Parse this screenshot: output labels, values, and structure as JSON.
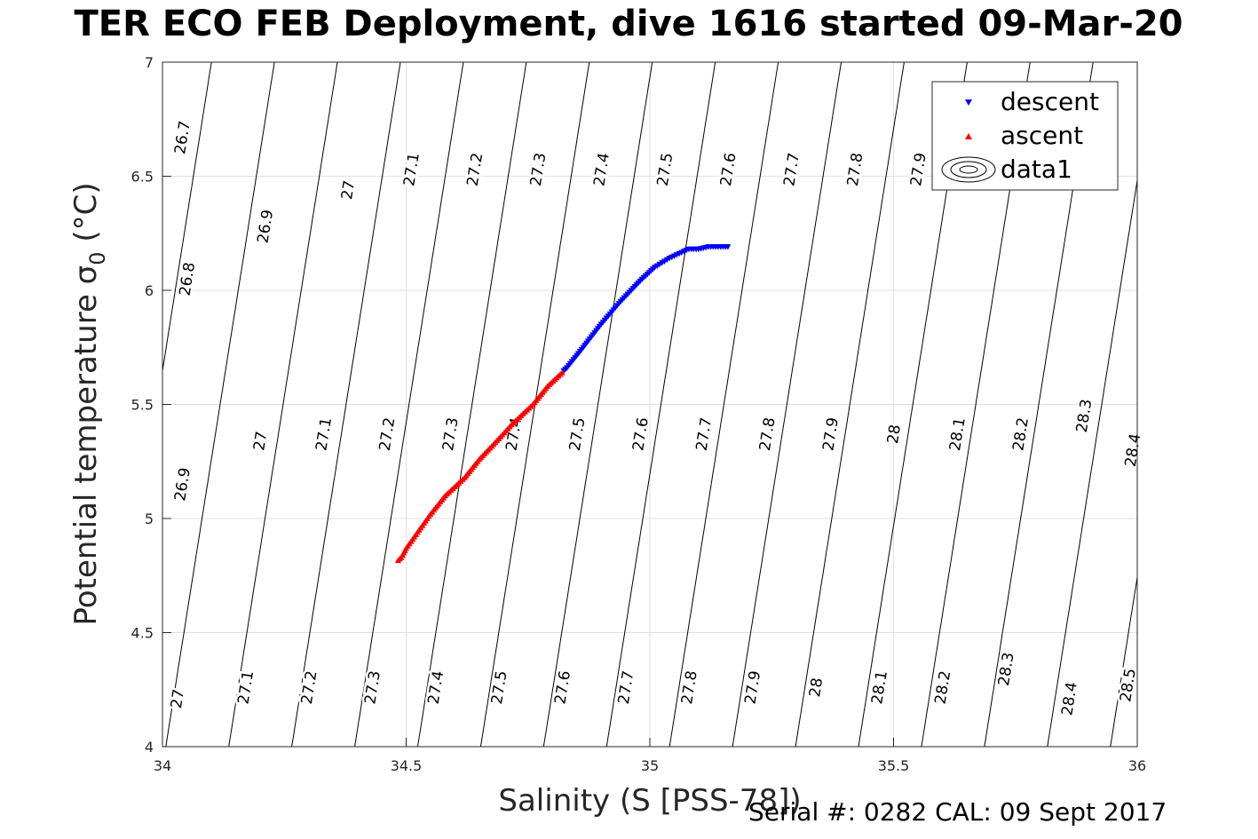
{
  "title": "TER ECO FEB Deployment, dive 1616 started 09-Mar-20",
  "footer": "Serial #: 0282  CAL: 09 Sept 2017",
  "chart_data": {
    "type": "scatter",
    "xlabel": "Salinity (S [PSS-78])",
    "ylabel_main": "Potential temperature ",
    "ylabel_sigma": "σ",
    "ylabel_sub": "0",
    "ylabel_unit": " (°C)",
    "xlim": [
      34,
      36
    ],
    "ylim": [
      4,
      7
    ],
    "xticks": [
      "34",
      "34.5",
      "35",
      "35.5",
      "36"
    ],
    "yticks": [
      "4",
      "4.5",
      "5",
      "5.5",
      "6",
      "6.5",
      "7"
    ],
    "grid": true,
    "legend_position": "top-right",
    "legend": [
      "descent",
      "ascent",
      "data1"
    ],
    "colors": {
      "descent": "#0000ff",
      "ascent": "#ff0000",
      "contour": "#000000",
      "grid": "#e0e0e0"
    },
    "series": [
      {
        "name": "descent",
        "marker": "triangle-down",
        "points": [
          [
            35.16,
            6.19
          ],
          [
            35.14,
            6.19
          ],
          [
            35.12,
            6.19
          ],
          [
            35.1,
            6.18
          ],
          [
            35.08,
            6.18
          ],
          [
            35.06,
            6.16
          ],
          [
            35.04,
            6.14
          ],
          [
            35.01,
            6.1
          ],
          [
            34.98,
            6.04
          ],
          [
            34.94,
            5.95
          ],
          [
            34.9,
            5.85
          ],
          [
            34.86,
            5.74
          ],
          [
            34.83,
            5.66
          ],
          [
            34.82,
            5.64
          ]
        ]
      },
      {
        "name": "ascent",
        "marker": "triangle-up",
        "points": [
          [
            34.82,
            5.64
          ],
          [
            34.79,
            5.58
          ],
          [
            34.76,
            5.5
          ],
          [
            34.72,
            5.42
          ],
          [
            34.69,
            5.35
          ],
          [
            34.65,
            5.26
          ],
          [
            34.62,
            5.18
          ],
          [
            34.58,
            5.1
          ],
          [
            34.55,
            5.02
          ],
          [
            34.52,
            4.93
          ],
          [
            34.5,
            4.87
          ],
          [
            34.49,
            4.83
          ],
          [
            34.48,
            4.81
          ]
        ]
      }
    ],
    "contour_levels": [
      "26.7",
      "26.8",
      "26.9",
      "27",
      "27.1",
      "27.2",
      "27.3",
      "27.4",
      "27.5",
      "27.6",
      "27.7",
      "27.8",
      "27.9",
      "28",
      "28.1",
      "28.2",
      "28.3",
      "28.4",
      "28.5"
    ],
    "contour_labels": [
      {
        "text": "26.7",
        "s": 34.04,
        "t": 6.67
      },
      {
        "text": "26.8",
        "s": 34.05,
        "t": 6.05
      },
      {
        "text": "26.9",
        "s": 34.21,
        "t": 6.28
      },
      {
        "text": "26.9",
        "s": 34.04,
        "t": 5.15
      },
      {
        "text": "27",
        "s": 34.38,
        "t": 6.44
      },
      {
        "text": "27",
        "s": 34.2,
        "t": 5.34
      },
      {
        "text": "27",
        "s": 34.03,
        "t": 4.21
      },
      {
        "text": "27.1",
        "s": 34.51,
        "t": 6.53
      },
      {
        "text": "27.1",
        "s": 34.33,
        "t": 5.37
      },
      {
        "text": "27.1",
        "s": 34.17,
        "t": 4.26
      },
      {
        "text": "27.2",
        "s": 34.64,
        "t": 6.53
      },
      {
        "text": "27.2",
        "s": 34.46,
        "t": 5.37
      },
      {
        "text": "27.2",
        "s": 34.3,
        "t": 4.26
      },
      {
        "text": "27.3",
        "s": 34.77,
        "t": 6.53
      },
      {
        "text": "27.3",
        "s": 34.59,
        "t": 5.37
      },
      {
        "text": "27.3",
        "s": 34.43,
        "t": 4.26
      },
      {
        "text": "27.4",
        "s": 34.9,
        "t": 6.53
      },
      {
        "text": "27.4",
        "s": 34.72,
        "t": 5.37
      },
      {
        "text": "27.4",
        "s": 34.56,
        "t": 4.26
      },
      {
        "text": "27.5",
        "s": 35.03,
        "t": 6.53
      },
      {
        "text": "27.5",
        "s": 34.85,
        "t": 5.37
      },
      {
        "text": "27.5",
        "s": 34.69,
        "t": 4.26
      },
      {
        "text": "27.6",
        "s": 35.16,
        "t": 6.53
      },
      {
        "text": "27.6",
        "s": 34.98,
        "t": 5.37
      },
      {
        "text": "27.6",
        "s": 34.82,
        "t": 4.26
      },
      {
        "text": "27.7",
        "s": 35.29,
        "t": 6.53
      },
      {
        "text": "27.7",
        "s": 35.11,
        "t": 5.37
      },
      {
        "text": "27.7",
        "s": 34.95,
        "t": 4.26
      },
      {
        "text": "27.8",
        "s": 35.42,
        "t": 6.53
      },
      {
        "text": "27.8",
        "s": 35.24,
        "t": 5.37
      },
      {
        "text": "27.8",
        "s": 35.08,
        "t": 4.26
      },
      {
        "text": "27.9",
        "s": 35.55,
        "t": 6.53
      },
      {
        "text": "27.9",
        "s": 35.37,
        "t": 5.37
      },
      {
        "text": "27.9",
        "s": 35.21,
        "t": 4.26
      },
      {
        "text": "28",
        "s": 35.5,
        "t": 5.37
      },
      {
        "text": "28",
        "s": 35.34,
        "t": 4.26
      },
      {
        "text": "28.1",
        "s": 35.63,
        "t": 5.37
      },
      {
        "text": "28.1",
        "s": 35.47,
        "t": 4.26
      },
      {
        "text": "28.2",
        "s": 35.76,
        "t": 5.37
      },
      {
        "text": "28.2",
        "s": 35.6,
        "t": 4.26
      },
      {
        "text": "28.3",
        "s": 35.89,
        "t": 5.45
      },
      {
        "text": "28.3",
        "s": 35.73,
        "t": 4.34
      },
      {
        "text": "28.4",
        "s": 35.99,
        "t": 5.3
      },
      {
        "text": "28.4",
        "s": 35.86,
        "t": 4.21
      },
      {
        "text": "28.5",
        "s": 35.98,
        "t": 4.27
      }
    ]
  }
}
